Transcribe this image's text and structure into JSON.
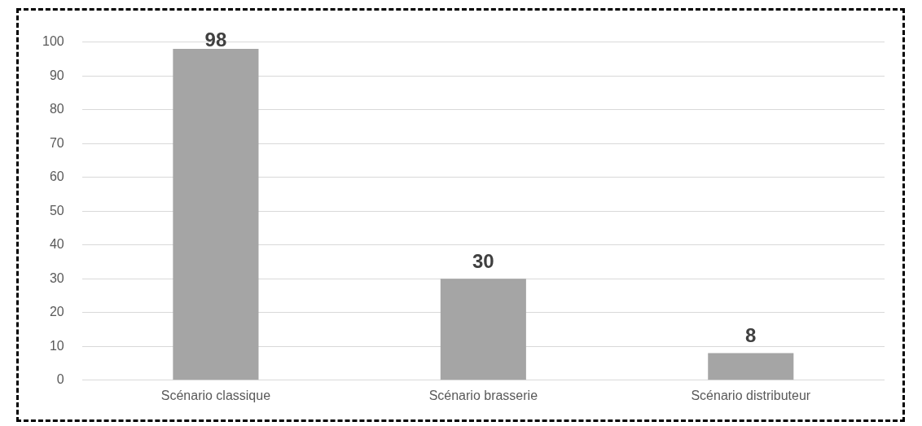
{
  "chart_data": {
    "type": "bar",
    "categories": [
      "Scénario classique",
      "Scénario brasserie",
      "Scénario distributeur"
    ],
    "values": [
      98,
      30,
      8
    ],
    "color": "#a5a5a5",
    "ylim": [
      0,
      100
    ],
    "yticks": [
      0,
      10,
      20,
      30,
      40,
      50,
      60,
      70,
      80,
      90,
      100
    ],
    "grid": "y",
    "data_labels": true,
    "legend": false
  }
}
